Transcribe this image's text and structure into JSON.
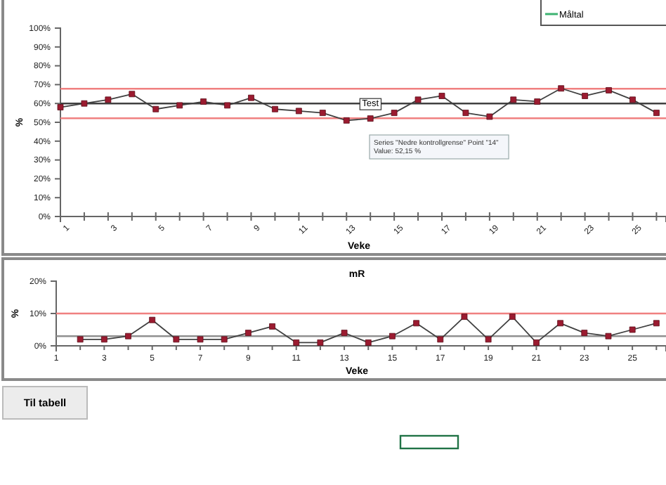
{
  "chart_data": [
    {
      "type": "line",
      "xlabel": "Veke",
      "ylabel": "%",
      "x": [
        1,
        2,
        3,
        4,
        5,
        6,
        7,
        8,
        9,
        10,
        11,
        12,
        13,
        14,
        15,
        16,
        17,
        18,
        19,
        20,
        21,
        22,
        23,
        24,
        25,
        26
      ],
      "series": [
        {
          "color": "#9b1b30",
          "values": [
            58,
            60,
            62,
            65,
            57,
            59,
            61,
            59,
            63,
            57,
            56,
            55,
            51,
            52,
            55,
            62,
            64,
            55,
            53,
            62,
            61,
            68,
            64,
            67,
            62,
            55
          ]
        },
        {
          "name": "Måltal",
          "color": "#3cb371",
          "values": [
            null,
            null,
            null,
            null,
            null,
            null,
            null,
            null,
            null,
            null,
            null,
            null,
            null,
            null,
            null,
            null,
            null,
            null,
            null,
            null,
            null,
            null,
            null,
            null,
            null,
            null
          ]
        }
      ],
      "marker": "square",
      "legend": "top right",
      "xlim": [
        1,
        26.4
      ],
      "xticks": [
        1,
        {
          "value": 2,
          "label": null
        },
        3,
        {
          "value": 4,
          "label": null
        },
        5,
        {
          "value": 6,
          "label": null
        },
        7,
        {
          "value": 8,
          "label": null
        },
        9,
        {
          "value": 10,
          "label": null
        },
        11,
        {
          "value": 12,
          "label": null
        },
        13,
        {
          "value": 14,
          "label": null
        },
        15,
        {
          "value": 16,
          "label": null
        },
        17,
        {
          "value": 18,
          "label": null
        },
        19,
        {
          "value": 20,
          "label": null
        },
        21,
        {
          "value": 22,
          "label": null
        },
        23,
        {
          "value": 24,
          "label": null
        },
        25,
        {
          "value": 26,
          "label": null
        }
      ],
      "ylim": [
        0,
        100
      ],
      "yticks": [
        {
          "value": 0,
          "label": "0%"
        },
        {
          "value": 10,
          "label": "10%"
        },
        {
          "value": 20,
          "label": "20%"
        },
        {
          "value": 30,
          "label": "30%"
        },
        {
          "value": 40,
          "label": "40%"
        },
        {
          "value": 50,
          "label": "50%"
        },
        {
          "value": 60,
          "label": "60%"
        },
        {
          "value": 70,
          "label": "70%"
        },
        {
          "value": 80,
          "label": "80%"
        },
        {
          "value": 90,
          "label": "90%"
        },
        {
          "value": 100,
          "label": "100%"
        }
      ],
      "ref_lines": [
        {
          "axis": "y",
          "value": 67.8,
          "label": null,
          "color": "#f08080"
        },
        {
          "axis": "y",
          "value": 60,
          "label": null,
          "color": "#404040"
        },
        {
          "axis": "y",
          "value": 52.15,
          "label": null,
          "color": "#f08080"
        }
      ],
      "annotations": [
        {
          "text": "Test",
          "x": 14,
          "y": 60
        },
        "Series \"Nedre kontrollgrense\" Point \"14\"\nValue: 52,15 %"
      ]
    },
    {
      "type": "line",
      "title": "mR",
      "xlabel": "Veke",
      "ylabel": "%",
      "x": [
        2,
        3,
        4,
        5,
        6,
        7,
        8,
        9,
        10,
        11,
        12,
        13,
        14,
        15,
        16,
        17,
        18,
        19,
        20,
        21,
        22,
        23,
        24,
        25,
        26
      ],
      "series": [
        {
          "color": "#9b1b30",
          "values": [
            2,
            2,
            3,
            8,
            2,
            2,
            2,
            4,
            6,
            1,
            1,
            4,
            1,
            3,
            7,
            2,
            9,
            2,
            9,
            1,
            7,
            4,
            3,
            5,
            7
          ]
        }
      ],
      "marker": "square",
      "xlim": [
        1,
        26.4
      ],
      "xticks": [
        1,
        {
          "value": 2,
          "label": null
        },
        3,
        {
          "value": 4,
          "label": null
        },
        5,
        {
          "value": 6,
          "label": null
        },
        7,
        {
          "value": 8,
          "label": null
        },
        9,
        {
          "value": 10,
          "label": null
        },
        11,
        {
          "value": 12,
          "label": null
        },
        13,
        {
          "value": 14,
          "label": null
        },
        15,
        {
          "value": 16,
          "label": null
        },
        17,
        {
          "value": 18,
          "label": null
        },
        19,
        {
          "value": 20,
          "label": null
        },
        21,
        {
          "value": 22,
          "label": null
        },
        23,
        {
          "value": 24,
          "label": null
        },
        25,
        {
          "value": 26,
          "label": null
        }
      ],
      "ylim": [
        0,
        20
      ],
      "yticks": [
        {
          "value": 0,
          "label": "0%"
        },
        {
          "value": 10,
          "label": "10%"
        },
        {
          "value": 20,
          "label": "20%"
        }
      ],
      "ref_lines": [
        {
          "axis": "y",
          "value": 10,
          "label": null,
          "color": "#f08080"
        },
        {
          "axis": "y",
          "value": 3,
          "label": null,
          "color": "#909090"
        }
      ],
      "annotations": [
        "Til tabell"
      ]
    }
  ]
}
